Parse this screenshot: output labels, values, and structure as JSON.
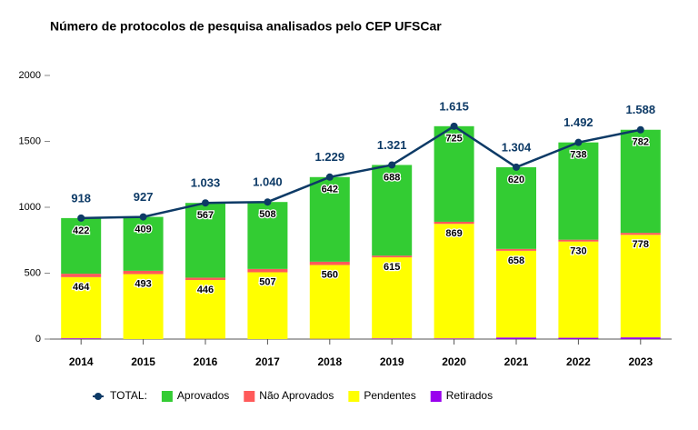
{
  "chart_data": {
    "type": "bar",
    "title": "Número de protocolos de pesquisa analisados pelo CEP UFSCar",
    "categories": [
      "2014",
      "2015",
      "2016",
      "2017",
      "2018",
      "2019",
      "2020",
      "2021",
      "2022",
      "2023"
    ],
    "ylim": [
      0,
      2000
    ],
    "yticks": [
      0,
      500,
      1000,
      1500,
      2000
    ],
    "grid": false,
    "stacked": true,
    "legend": "bottom",
    "series": [
      {
        "name": "Aprovados",
        "color": "#33cc33",
        "values": [
          422,
          409,
          567,
          508,
          642,
          688,
          725,
          620,
          738,
          782
        ]
      },
      {
        "name": "Não Aprovados",
        "color": "#ff5a5a",
        "values": [
          26,
          25,
          18,
          25,
          25,
          13,
          16,
          14,
          14,
          15
        ]
      },
      {
        "name": "Pendentes",
        "color": "#ffff00",
        "values": [
          464,
          493,
          446,
          507,
          560,
          615,
          869,
          658,
          730,
          778
        ]
      },
      {
        "name": "Retirados",
        "color": "#9900ee",
        "values": [
          6,
          0,
          2,
          0,
          2,
          5,
          5,
          12,
          10,
          13
        ]
      }
    ],
    "line": {
      "name": "TOTAL:",
      "color": "#0d3a66",
      "values": [
        918,
        927,
        1033,
        1040,
        1229,
        1321,
        1615,
        1304,
        1492,
        1588
      ],
      "value_labels": [
        "918",
        "927",
        "1.033",
        "1.040",
        "1.229",
        "1.321",
        "1.615",
        "1.304",
        "1.492",
        "1.588"
      ]
    }
  }
}
